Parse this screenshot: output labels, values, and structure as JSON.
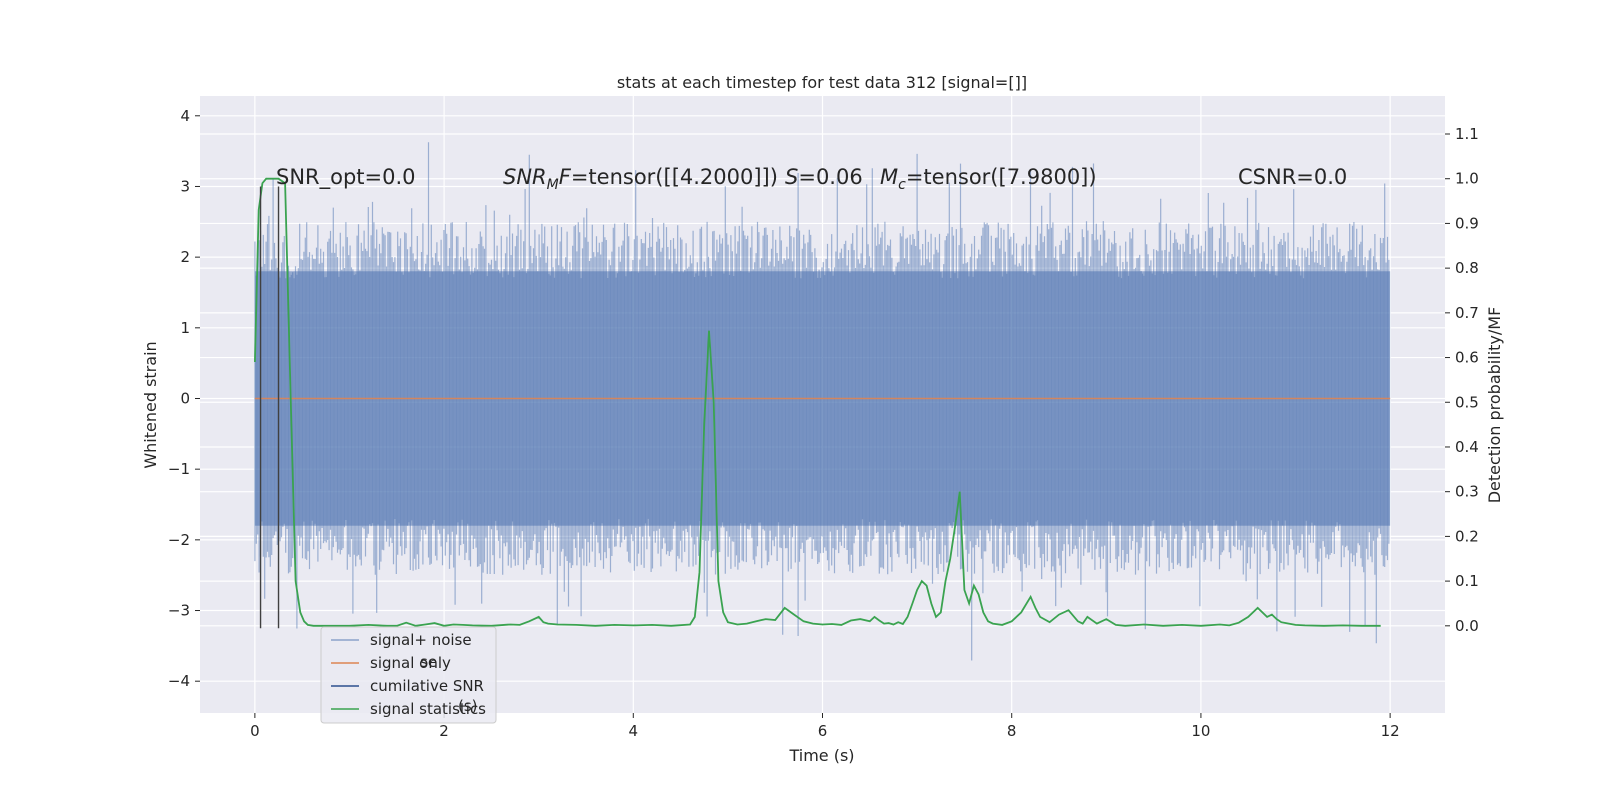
{
  "chart_data": {
    "type": "line",
    "title": "stats at each timestep for test data 312 [signal=[]]",
    "xlabel": "Time (s)",
    "ylabel": "Whitened strain",
    "y2label": "Detection probability/MF",
    "xlim": [
      -0.58,
      12.58
    ],
    "ylim": [
      -4.45,
      4.28
    ],
    "y2lim": [
      -0.195,
      1.185
    ],
    "xticks": [
      0,
      2,
      4,
      6,
      8,
      10,
      12
    ],
    "yticks": [
      -4,
      -3,
      -2,
      -1,
      0,
      1,
      2,
      3,
      4
    ],
    "y2ticks": [
      0.0,
      0.1,
      0.2,
      0.3,
      0.4,
      0.5,
      0.6,
      0.7,
      0.8,
      0.9,
      1.0,
      1.1
    ],
    "grid": true,
    "legend_position": "lower-left",
    "colors": {
      "signal_noise": "#4c72b0",
      "signal_only": "#dd8452",
      "cumulative_snr": "#2d4f8e",
      "signal_statistics": "#3aa350",
      "markers": "#404040",
      "background": "#eaeaf2",
      "grid": "#ffffff"
    },
    "series": [
      {
        "name": "signal+ noise",
        "axis": "left",
        "style": "noise band",
        "x_range": [
          0,
          12
        ],
        "core_range": [
          -1.8,
          1.8
        ],
        "peak_range": [
          -4.1,
          3.9
        ]
      },
      {
        "name": "signal only",
        "axis": "left",
        "x": [
          0,
          12
        ],
        "y": [
          0,
          0
        ]
      },
      {
        "name": "cumilative SNR",
        "axis": "left",
        "x": [],
        "y": []
      },
      {
        "name": "signal statistics",
        "axis": "right",
        "x": [
          0.0,
          0.04,
          0.08,
          0.12,
          0.18,
          0.25,
          0.32,
          0.38,
          0.43,
          0.48,
          0.52,
          0.56,
          0.62,
          0.7,
          0.85,
          1.0,
          1.2,
          1.4,
          1.5,
          1.6,
          1.7,
          1.8,
          1.9,
          2.0,
          2.1,
          2.2,
          2.3,
          2.5,
          2.7,
          2.8,
          2.9,
          3.0,
          3.05,
          3.1,
          3.2,
          3.4,
          3.6,
          3.8,
          4.0,
          4.2,
          4.4,
          4.6,
          4.65,
          4.7,
          4.75,
          4.8,
          4.85,
          4.9,
          4.95,
          5.0,
          5.1,
          5.2,
          5.3,
          5.4,
          5.5,
          5.6,
          5.7,
          5.8,
          5.9,
          6.0,
          6.1,
          6.2,
          6.3,
          6.4,
          6.5,
          6.55,
          6.6,
          6.65,
          6.7,
          6.75,
          6.8,
          6.85,
          6.9,
          6.95,
          7.0,
          7.05,
          7.1,
          7.15,
          7.2,
          7.25,
          7.3,
          7.35,
          7.4,
          7.45,
          7.5,
          7.55,
          7.6,
          7.65,
          7.7,
          7.75,
          7.8,
          7.9,
          8.0,
          8.1,
          8.2,
          8.25,
          8.3,
          8.4,
          8.5,
          8.6,
          8.7,
          8.75,
          8.8,
          8.9,
          9.0,
          9.1,
          9.2,
          9.4,
          9.6,
          9.8,
          10.0,
          10.2,
          10.3,
          10.4,
          10.5,
          10.6,
          10.7,
          10.75,
          10.8,
          10.85,
          10.9,
          10.95,
          11.0,
          11.1,
          11.3,
          11.5,
          11.7,
          11.9
        ],
        "y": [
          0.59,
          0.93,
          0.99,
          1.0,
          1.0,
          1.0,
          0.99,
          0.5,
          0.1,
          0.03,
          0.01,
          0.002,
          0.0,
          0.0,
          0.0,
          0.0,
          0.002,
          0.0,
          0.0,
          0.007,
          0.0,
          0.003,
          0.006,
          0.0,
          0.003,
          0.002,
          0.001,
          0.0,
          0.003,
          0.002,
          0.01,
          0.02,
          0.008,
          0.005,
          0.003,
          0.002,
          0.0,
          0.002,
          0.001,
          0.002,
          0.0,
          0.003,
          0.02,
          0.12,
          0.45,
          0.66,
          0.5,
          0.1,
          0.03,
          0.008,
          0.003,
          0.005,
          0.01,
          0.015,
          0.013,
          0.04,
          0.025,
          0.01,
          0.005,
          0.003,
          0.004,
          0.002,
          0.012,
          0.015,
          0.01,
          0.02,
          0.012,
          0.005,
          0.006,
          0.003,
          0.008,
          0.004,
          0.02,
          0.05,
          0.08,
          0.1,
          0.09,
          0.05,
          0.02,
          0.03,
          0.1,
          0.15,
          0.22,
          0.3,
          0.08,
          0.05,
          0.09,
          0.07,
          0.03,
          0.01,
          0.005,
          0.002,
          0.01,
          0.03,
          0.065,
          0.04,
          0.02,
          0.008,
          0.025,
          0.035,
          0.01,
          0.005,
          0.02,
          0.005,
          0.015,
          0.002,
          0.0,
          0.003,
          0.0,
          0.002,
          0.0,
          0.003,
          0.001,
          0.007,
          0.02,
          0.04,
          0.02,
          0.025,
          0.015,
          0.008,
          0.006,
          0.004,
          0.002,
          0.001,
          0.0,
          0.001,
          0.0,
          0.0
        ]
      }
    ],
    "vlines": [
      0.06,
      0.25
    ],
    "annotations": [
      {
        "id": "snr-opt",
        "text": "SNR_opt=0.0"
      },
      {
        "id": "snr-mf",
        "var": "SNR",
        "sub": "M",
        "rest": "F",
        "text": "=tensor([[4.2000]])"
      },
      {
        "id": "s",
        "var": "S",
        "text": "=0.06"
      },
      {
        "id": "mc",
        "var": "M",
        "sub": "c",
        "text": "=tensor([7.9800])"
      },
      {
        "id": "csnr",
        "text": "CSNR=0.0"
      }
    ],
    "legend": [
      "signal+ noise",
      "signal only",
      "cumilative SNR",
      "signal statistics"
    ],
    "legend_ghost": [
      "se",
      "(s)"
    ]
  }
}
